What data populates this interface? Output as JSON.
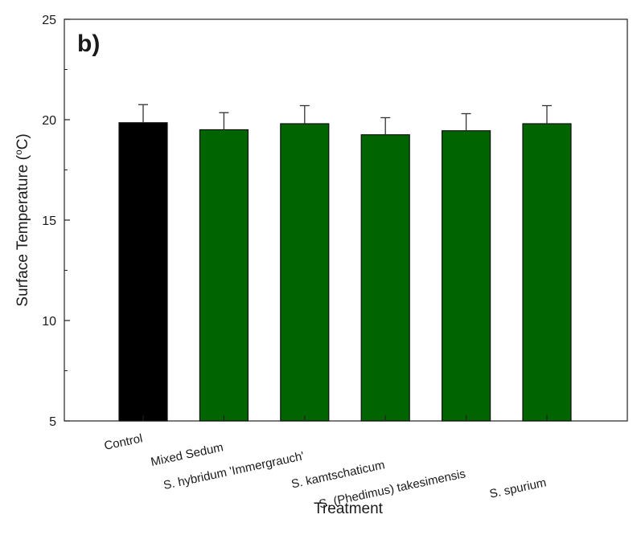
{
  "chart_data": {
    "type": "bar",
    "panel_label": "b)",
    "categories": [
      "Control",
      "Mixed Sedum",
      "S. hybridum 'Immergrauch'",
      "S. kamtschaticum",
      "S. (Phedimus) takesimensis",
      "S. spurium"
    ],
    "values": [
      19.85,
      19.5,
      19.8,
      19.25,
      19.45,
      19.8
    ],
    "errors": [
      0.9,
      0.85,
      0.9,
      0.85,
      0.85,
      0.9
    ],
    "bar_colors": [
      "#000000",
      "#006400",
      "#006400",
      "#006400",
      "#006400",
      "#006400"
    ],
    "xlabel": "Treatment",
    "ylabel_prefix": "Surface Temperature (",
    "ylabel_sup": "o",
    "ylabel_suffix": "C)",
    "ylim": [
      5,
      25
    ],
    "yticks": [
      5,
      10,
      15,
      20,
      25
    ],
    "grid": false,
    "legend": "none"
  }
}
